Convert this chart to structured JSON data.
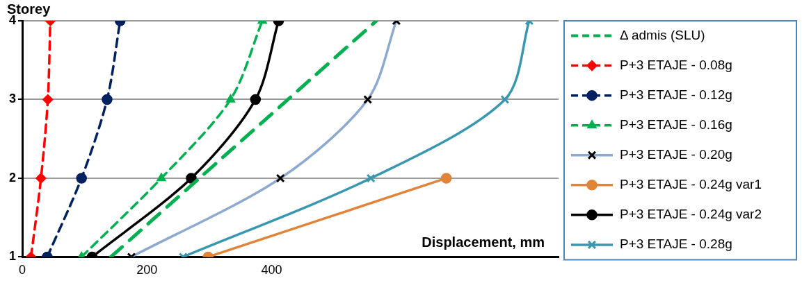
{
  "chart_data": {
    "type": "line",
    "xlabel": "Displacement, mm",
    "ylabel": "Storey",
    "xlim": [
      0,
      860
    ],
    "xticks": [
      0,
      200,
      400
    ],
    "ylim": [
      1,
      4
    ],
    "yticks": [
      1,
      2,
      3,
      4
    ],
    "grid": "y",
    "legend": "right",
    "series": [
      {
        "name": "Δ admis (SLU)",
        "color": "#00b050",
        "x": [
          142,
          284,
          426,
          568
        ],
        "values": [
          1,
          2,
          3,
          4
        ],
        "marker": "none",
        "line_style": "dashed"
      },
      {
        "name": "P+3 ETAJE - 0.08g",
        "color": "#ff0000",
        "x": [
          14,
          30,
          41,
          45
        ],
        "values": [
          1,
          2,
          3,
          4
        ],
        "marker": "diamond",
        "line_style": "dashed"
      },
      {
        "name": "P+3 ETAJE - 0.12g",
        "color": "#002060",
        "x": [
          40,
          95,
          136,
          157
        ],
        "values": [
          1,
          2,
          3,
          4
        ],
        "marker": "circle",
        "line_style": "dashed"
      },
      {
        "name": "P+3 ETAJE - 0.16g",
        "color": "#00b050",
        "x": [
          95,
          223,
          334,
          385
        ],
        "values": [
          1,
          2,
          3,
          4
        ],
        "marker": "triangle",
        "line_style": "dashed"
      },
      {
        "name": "P+3 ETAJE - 0.20g",
        "color": "#8ea9d0",
        "x": [
          175,
          414,
          554,
          600
        ],
        "values": [
          1,
          2,
          3,
          4
        ],
        "marker": "cross",
        "line_style": "solid"
      },
      {
        "name": "P+3 ETAJE - 0.24g var1",
        "color": "#e0843a",
        "x": [
          298,
          680
        ],
        "values": [
          1,
          2
        ],
        "marker": "circle",
        "line_style": "solid"
      },
      {
        "name": "P+3 ETAJE - 0.24g var2",
        "color": "#000000",
        "x": [
          112,
          271,
          374,
          411
        ],
        "values": [
          1,
          2,
          3,
          4
        ],
        "marker": "circle",
        "line_style": "solid"
      },
      {
        "name": "P+3 ETAJE - 0.28g",
        "color": "#3a97b0",
        "x": [
          258,
          559,
          774,
          813
        ],
        "values": [
          1,
          2,
          3,
          4
        ],
        "marker": "cross",
        "line_style": "solid"
      }
    ]
  }
}
